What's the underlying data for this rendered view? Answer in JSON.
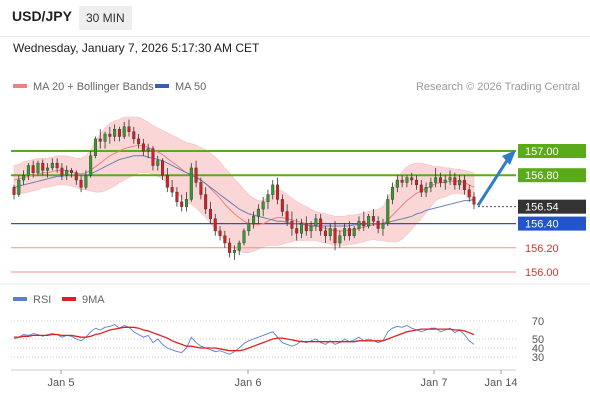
{
  "header": {
    "symbol": "USD/JPY",
    "timeframe": "30 MIN"
  },
  "datetime": "Wednesday, January 7, 2026 5:17:30 AM CET",
  "legend": {
    "ma20": {
      "label": "MA 20 + Bollinger Bands",
      "color": "#f08080"
    },
    "ma50": {
      "label": "MA 50",
      "color": "#3a5fa8"
    }
  },
  "credit": "Research © 2026 Trading Central",
  "rsi_legend": {
    "rsi": {
      "label": "RSI",
      "color": "#5b7fd6"
    },
    "ma9": {
      "label": "9MA",
      "color": "#e02020"
    }
  },
  "colors": {
    "up": "#2e9e2e",
    "down": "#d42020",
    "resistance": "#5aaa1a",
    "support_blue": "#2255cc",
    "support_red": "#f09090",
    "band": "#fbd6d6",
    "arrow": "#2f7dc8",
    "current": "#333333"
  },
  "chart_data": [
    {
      "type": "candlestick",
      "ylim": [
        155.9,
        157.3
      ],
      "x_ticks": [
        "Jan 5",
        "Jan 6",
        "Jan 7",
        "Jan 14"
      ],
      "levels": [
        {
          "value": 157.0,
          "label": "157.00",
          "kind": "resistance"
        },
        {
          "value": 156.8,
          "label": "156.80",
          "kind": "resistance"
        },
        {
          "value": 156.54,
          "label": "156.54",
          "kind": "current"
        },
        {
          "value": 156.4,
          "label": "156.40",
          "kind": "support_blue"
        },
        {
          "value": 156.2,
          "label": "156.20",
          "kind": "support_red"
        },
        {
          "value": 156.0,
          "label": "156.00",
          "kind": "support_red"
        }
      ],
      "candles": [
        [
          156.7,
          156.72,
          156.6,
          156.64
        ],
        [
          156.64,
          156.8,
          156.62,
          156.76
        ],
        [
          156.76,
          156.84,
          156.72,
          156.8
        ],
        [
          156.8,
          156.9,
          156.76,
          156.88
        ],
        [
          156.88,
          156.92,
          156.78,
          156.82
        ],
        [
          156.82,
          156.92,
          156.8,
          156.9
        ],
        [
          156.9,
          156.93,
          156.8,
          156.84
        ],
        [
          156.84,
          156.9,
          156.78,
          156.86
        ],
        [
          156.86,
          156.94,
          156.84,
          156.9
        ],
        [
          156.9,
          156.94,
          156.82,
          156.86
        ],
        [
          156.86,
          156.9,
          156.76,
          156.8
        ],
        [
          156.8,
          156.88,
          156.76,
          156.84
        ],
        [
          156.84,
          156.86,
          156.78,
          156.82
        ],
        [
          156.82,
          156.84,
          156.72,
          156.76
        ],
        [
          156.76,
          156.8,
          156.66,
          156.7
        ],
        [
          156.7,
          156.84,
          156.68,
          156.8
        ],
        [
          156.8,
          157.0,
          156.78,
          156.96
        ],
        [
          156.96,
          157.12,
          156.94,
          157.1
        ],
        [
          157.1,
          157.18,
          157.02,
          157.08
        ],
        [
          157.08,
          157.16,
          157.02,
          157.14
        ],
        [
          157.14,
          157.2,
          157.06,
          157.12
        ],
        [
          157.12,
          157.22,
          157.08,
          157.18
        ],
        [
          157.18,
          157.2,
          157.08,
          157.12
        ],
        [
          157.12,
          157.24,
          157.1,
          157.2
        ],
        [
          157.2,
          157.26,
          157.12,
          157.16
        ],
        [
          157.16,
          157.2,
          157.06,
          157.1
        ],
        [
          157.1,
          157.14,
          157.02,
          157.06
        ],
        [
          157.06,
          157.1,
          156.96,
          157.0
        ],
        [
          157.0,
          157.06,
          156.94,
          157.02
        ],
        [
          157.02,
          157.04,
          156.84,
          156.88
        ],
        [
          156.88,
          156.96,
          156.84,
          156.92
        ],
        [
          156.92,
          156.94,
          156.76,
          156.8
        ],
        [
          156.8,
          156.86,
          156.66,
          156.7
        ],
        [
          156.7,
          156.76,
          156.62,
          156.66
        ],
        [
          156.66,
          156.7,
          156.54,
          156.58
        ],
        [
          156.58,
          156.64,
          156.5,
          156.54
        ],
        [
          156.54,
          156.66,
          156.5,
          156.6
        ],
        [
          156.6,
          156.9,
          156.58,
          156.86
        ],
        [
          156.86,
          156.92,
          156.7,
          156.74
        ],
        [
          156.74,
          156.78,
          156.6,
          156.64
        ],
        [
          156.64,
          156.7,
          156.48,
          156.52
        ],
        [
          156.52,
          156.58,
          156.4,
          156.44
        ],
        [
          156.44,
          156.48,
          156.3,
          156.34
        ],
        [
          156.34,
          156.38,
          156.26,
          156.3
        ],
        [
          156.3,
          156.34,
          156.2,
          156.24
        ],
        [
          156.24,
          156.28,
          156.12,
          156.16
        ],
        [
          156.16,
          156.22,
          156.1,
          156.18
        ],
        [
          156.18,
          156.26,
          156.14,
          156.24
        ],
        [
          156.24,
          156.36,
          156.22,
          156.34
        ],
        [
          156.34,
          156.44,
          156.3,
          156.4
        ],
        [
          156.4,
          156.5,
          156.36,
          156.46
        ],
        [
          156.46,
          156.56,
          156.4,
          156.52
        ],
        [
          156.52,
          156.62,
          156.46,
          156.58
        ],
        [
          156.58,
          156.68,
          156.52,
          156.64
        ],
        [
          156.64,
          156.76,
          156.6,
          156.72
        ],
        [
          156.72,
          156.78,
          156.56,
          156.6
        ],
        [
          156.6,
          156.64,
          156.46,
          156.5
        ],
        [
          156.5,
          156.56,
          156.38,
          156.42
        ],
        [
          156.42,
          156.5,
          156.3,
          156.36
        ],
        [
          156.36,
          156.44,
          156.26,
          156.32
        ],
        [
          156.32,
          156.44,
          156.28,
          156.4
        ],
        [
          156.4,
          156.46,
          156.3,
          156.34
        ],
        [
          156.34,
          156.42,
          156.28,
          156.38
        ],
        [
          156.38,
          156.48,
          156.34,
          156.44
        ],
        [
          156.44,
          156.48,
          156.3,
          156.34
        ],
        [
          156.34,
          156.38,
          156.24,
          156.3
        ],
        [
          156.3,
          156.4,
          156.26,
          156.36
        ],
        [
          156.36,
          156.42,
          156.18,
          156.24
        ],
        [
          156.24,
          156.34,
          156.2,
          156.3
        ],
        [
          156.3,
          156.4,
          156.26,
          156.36
        ],
        [
          156.36,
          156.42,
          156.26,
          156.3
        ],
        [
          156.3,
          156.38,
          156.28,
          156.36
        ],
        [
          156.36,
          156.46,
          156.34,
          156.42
        ],
        [
          156.42,
          156.5,
          156.34,
          156.38
        ],
        [
          156.38,
          156.48,
          156.36,
          156.46
        ],
        [
          156.46,
          156.52,
          156.38,
          156.42
        ],
        [
          156.42,
          156.46,
          156.32,
          156.36
        ],
        [
          156.36,
          156.44,
          156.3,
          156.4
        ],
        [
          156.4,
          156.64,
          156.38,
          156.6
        ],
        [
          156.6,
          156.74,
          156.56,
          156.7
        ],
        [
          156.7,
          156.8,
          156.66,
          156.76
        ],
        [
          156.76,
          156.8,
          156.7,
          156.74
        ],
        [
          156.74,
          156.8,
          156.7,
          156.78
        ],
        [
          156.78,
          156.82,
          156.72,
          156.76
        ],
        [
          156.76,
          156.8,
          156.68,
          156.72
        ],
        [
          156.72,
          156.76,
          156.62,
          156.66
        ],
        [
          156.66,
          156.74,
          156.62,
          156.7
        ],
        [
          156.7,
          156.78,
          156.66,
          156.74
        ],
        [
          156.74,
          156.86,
          156.7,
          156.78
        ],
        [
          156.78,
          156.82,
          156.7,
          156.74
        ],
        [
          156.74,
          156.8,
          156.68,
          156.76
        ],
        [
          156.76,
          156.84,
          156.72,
          156.78
        ],
        [
          156.78,
          156.82,
          156.68,
          156.72
        ],
        [
          156.72,
          156.8,
          156.68,
          156.76
        ],
        [
          156.76,
          156.8,
          156.64,
          156.68
        ],
        [
          156.68,
          156.72,
          156.58,
          156.62
        ],
        [
          156.62,
          156.66,
          156.52,
          156.56
        ]
      ],
      "ma20": [
        156.76,
        156.77,
        156.78,
        156.79,
        156.8,
        156.81,
        156.82,
        156.82,
        156.83,
        156.84,
        156.84,
        156.84,
        156.83,
        156.82,
        156.81,
        156.82,
        156.84,
        156.87,
        156.9,
        156.93,
        156.96,
        156.98,
        157.0,
        157.02,
        157.03,
        157.04,
        157.05,
        157.04,
        157.03,
        157.01,
        156.99,
        156.97,
        156.94,
        156.91,
        156.88,
        156.85,
        156.82,
        156.81,
        156.79,
        156.76,
        156.73,
        156.69,
        156.65,
        156.61,
        156.56,
        156.52,
        156.48,
        156.45,
        156.42,
        156.4,
        156.39,
        156.39,
        156.4,
        156.42,
        156.44,
        156.45,
        156.45,
        156.44,
        156.43,
        156.42,
        156.41,
        156.4,
        156.39,
        156.38,
        156.37,
        156.36,
        156.35,
        156.34,
        156.34,
        156.34,
        156.35,
        156.35,
        156.36,
        156.37,
        156.38,
        156.39,
        156.39,
        156.4,
        156.43,
        156.47,
        156.51,
        156.55,
        156.59,
        156.62,
        156.65,
        156.67,
        156.69,
        156.71,
        156.73,
        156.74,
        156.74,
        156.75,
        156.75,
        156.75,
        156.74,
        156.72,
        156.7
      ],
      "ma50": [
        156.7,
        156.71,
        156.72,
        156.73,
        156.74,
        156.75,
        156.76,
        156.77,
        156.78,
        156.79,
        156.79,
        156.8,
        156.8,
        156.8,
        156.8,
        156.8,
        156.81,
        156.83,
        156.85,
        156.87,
        156.89,
        156.91,
        156.93,
        156.94,
        156.95,
        156.96,
        156.96,
        156.96,
        156.95,
        156.94,
        156.93,
        156.92,
        156.9,
        156.88,
        156.86,
        156.84,
        156.82,
        156.8,
        156.78,
        156.76,
        156.73,
        156.7,
        156.67,
        156.64,
        156.61,
        156.58,
        156.55,
        156.52,
        156.5,
        156.48,
        156.47,
        156.46,
        156.45,
        156.44,
        156.43,
        156.42,
        156.42,
        156.41,
        156.4,
        156.4,
        156.39,
        156.39,
        156.38,
        156.38,
        156.38,
        156.38,
        156.38,
        156.38,
        156.38,
        156.38,
        156.38,
        156.39,
        156.39,
        156.39,
        156.4,
        156.4,
        156.4,
        156.4,
        156.41,
        156.42,
        156.43,
        156.44,
        156.45,
        156.46,
        156.48,
        156.49,
        156.51,
        156.52,
        156.53,
        156.54,
        156.55,
        156.56,
        156.57,
        156.58,
        156.59,
        156.59,
        156.6
      ],
      "band_width": [
        0.12,
        0.12,
        0.13,
        0.13,
        0.13,
        0.13,
        0.12,
        0.12,
        0.12,
        0.12,
        0.12,
        0.12,
        0.12,
        0.12,
        0.13,
        0.14,
        0.17,
        0.21,
        0.24,
        0.26,
        0.27,
        0.27,
        0.26,
        0.26,
        0.25,
        0.24,
        0.23,
        0.22,
        0.21,
        0.2,
        0.2,
        0.2,
        0.21,
        0.22,
        0.23,
        0.24,
        0.25,
        0.25,
        0.26,
        0.27,
        0.28,
        0.29,
        0.3,
        0.3,
        0.3,
        0.3,
        0.29,
        0.28,
        0.26,
        0.24,
        0.22,
        0.2,
        0.19,
        0.2,
        0.22,
        0.23,
        0.22,
        0.2,
        0.18,
        0.16,
        0.15,
        0.14,
        0.13,
        0.12,
        0.12,
        0.12,
        0.12,
        0.12,
        0.12,
        0.12,
        0.12,
        0.12,
        0.12,
        0.12,
        0.12,
        0.12,
        0.13,
        0.14,
        0.18,
        0.22,
        0.26,
        0.28,
        0.28,
        0.27,
        0.25,
        0.23,
        0.2,
        0.17,
        0.14,
        0.13,
        0.12,
        0.11,
        0.1,
        0.1,
        0.1,
        0.11,
        0.12
      ],
      "arrow": {
        "from": 156.55,
        "to": 157.0
      }
    },
    {
      "type": "line",
      "ylim": [
        20,
        80
      ],
      "y_ticks": [
        70,
        50,
        40,
        30
      ],
      "series": [
        {
          "name": "RSI",
          "values": [
            50,
            52,
            55,
            54,
            56,
            55,
            53,
            55,
            56,
            55,
            52,
            54,
            53,
            50,
            48,
            52,
            58,
            62,
            60,
            63,
            64,
            66,
            62,
            65,
            63,
            58,
            55,
            52,
            54,
            46,
            50,
            44,
            40,
            38,
            36,
            35,
            40,
            52,
            46,
            42,
            40,
            38,
            36,
            37,
            35,
            33,
            36,
            40,
            45,
            48,
            50,
            52,
            54,
            56,
            58,
            52,
            46,
            44,
            42,
            44,
            48,
            46,
            48,
            50,
            46,
            44,
            48,
            44,
            46,
            50,
            47,
            49,
            52,
            48,
            50,
            48,
            46,
            48,
            58,
            62,
            64,
            63,
            65,
            62,
            60,
            58,
            60,
            62,
            62,
            58,
            60,
            62,
            57,
            60,
            55,
            48,
            44
          ]
        },
        {
          "name": "9MA",
          "values": [
            52,
            52,
            53,
            53,
            54,
            54,
            54,
            54,
            55,
            55,
            54,
            54,
            54,
            53,
            52,
            52,
            53,
            55,
            56,
            58,
            60,
            61,
            62,
            63,
            63,
            63,
            62,
            60,
            59,
            57,
            55,
            53,
            51,
            48,
            46,
            44,
            42,
            42,
            41,
            40,
            40,
            40,
            40,
            39,
            38,
            37,
            37,
            37,
            38,
            40,
            42,
            44,
            46,
            48,
            50,
            51,
            51,
            50,
            49,
            48,
            47,
            47,
            47,
            47,
            47,
            47,
            47,
            47,
            47,
            47,
            47,
            47,
            48,
            48,
            48,
            48,
            48,
            48,
            50,
            52,
            54,
            56,
            58,
            59,
            60,
            61,
            61,
            61,
            61,
            61,
            61,
            61,
            60,
            60,
            59,
            57,
            55
          ]
        }
      ]
    }
  ]
}
